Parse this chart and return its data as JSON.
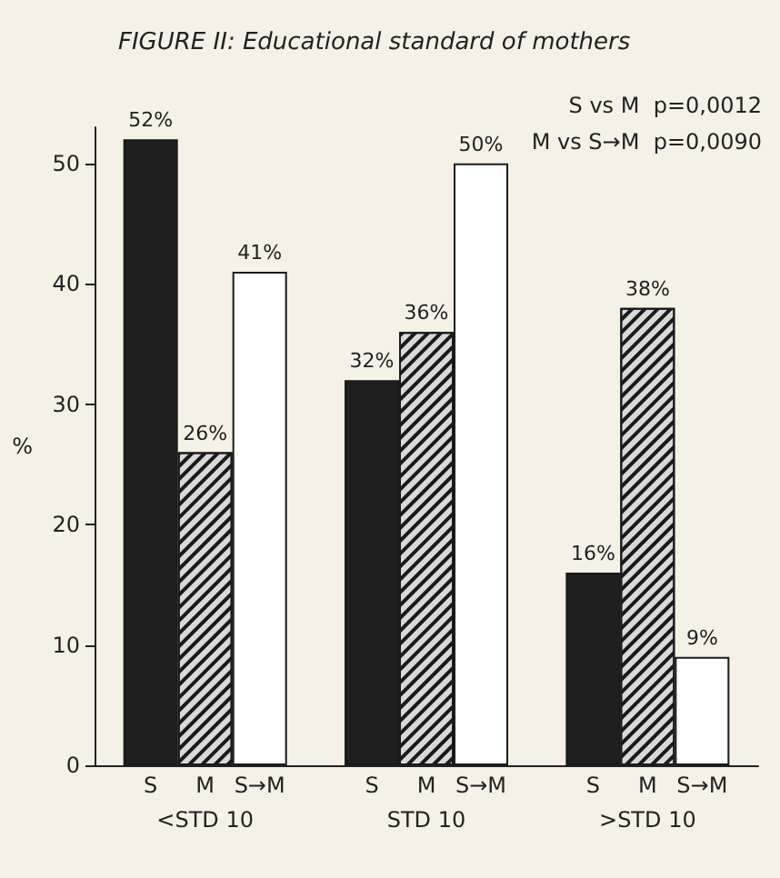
{
  "chart_data": {
    "type": "bar",
    "title": "FIGURE II: Educational standard of mothers",
    "ylabel": "%",
    "categories": [
      "<STD 10",
      "STD 10",
      ">STD 10"
    ],
    "series": [
      {
        "name": "S",
        "color": "#1f1f1f",
        "values": [
          52,
          32,
          16
        ],
        "value_labels": [
          "52%",
          "32%",
          "16%"
        ]
      },
      {
        "name": "M",
        "color": "#d9d9d9",
        "values": [
          26,
          36,
          38
        ],
        "value_labels": [
          "26%",
          "36%",
          "38%"
        ]
      },
      {
        "name": "S→M",
        "color": "#ffffff",
        "values": [
          41,
          50,
          9
        ],
        "value_labels": [
          "41%",
          "50%",
          "9%"
        ]
      }
    ],
    "ylim": [
      0,
      53
    ],
    "yticks": [
      0,
      10,
      20,
      30,
      40,
      50
    ],
    "grid": false,
    "legend": false,
    "annotations": [
      "S vs M  p=0,0012",
      "M vs S→M  p=0,0090"
    ]
  }
}
